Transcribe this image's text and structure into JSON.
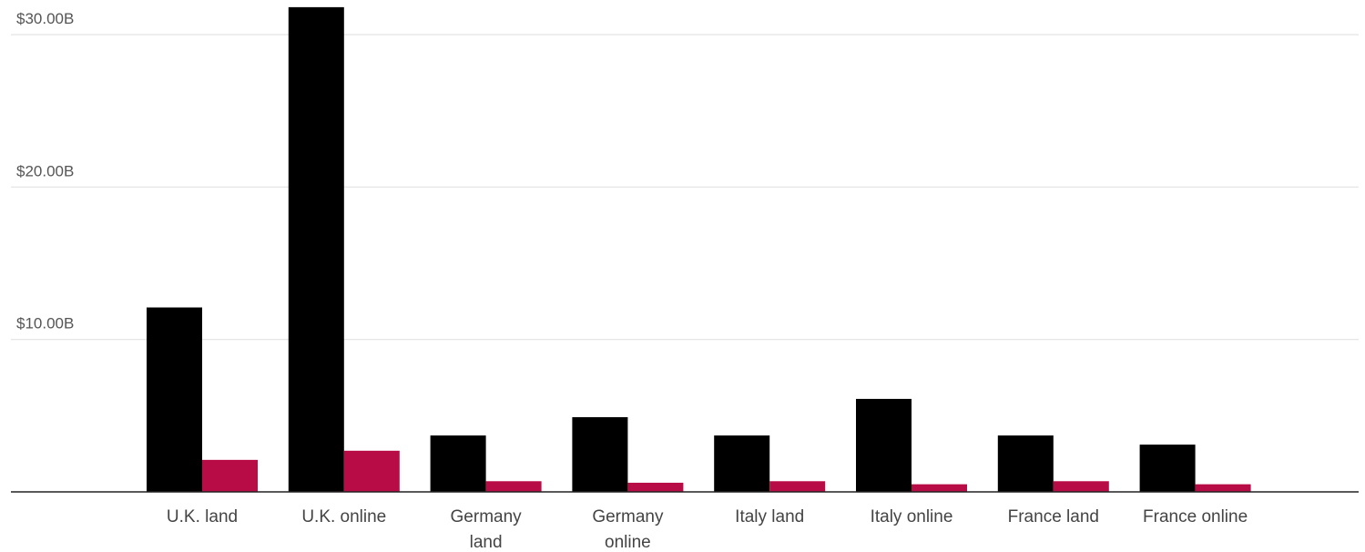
{
  "chart_data": {
    "type": "bar",
    "title": "",
    "xlabel": "",
    "ylabel": "",
    "categories": [
      [
        "U.K. land"
      ],
      [
        "U.K. online"
      ],
      [
        "Germany",
        "land"
      ],
      [
        "Germany",
        "online"
      ],
      [
        "Italy land"
      ],
      [
        "Italy online"
      ],
      [
        "France land"
      ],
      [
        "France online"
      ]
    ],
    "series": [
      {
        "color": "#000000",
        "values": [
          12.1,
          31.8,
          3.7,
          4.9,
          3.7,
          6.1,
          3.7,
          3.1
        ]
      },
      {
        "color": "#b80c47",
        "values": [
          2.1,
          2.7,
          0.7,
          0.6,
          0.7,
          0.5,
          0.7,
          0.5
        ]
      }
    ],
    "ylim": [
      0,
      32
    ],
    "yticks": [
      {
        "value": 10,
        "label": "$10.00B"
      },
      {
        "value": 20,
        "label": "$20.00B"
      },
      {
        "value": 30,
        "label": "$30.00B"
      }
    ],
    "grid": true,
    "legend": "none"
  }
}
